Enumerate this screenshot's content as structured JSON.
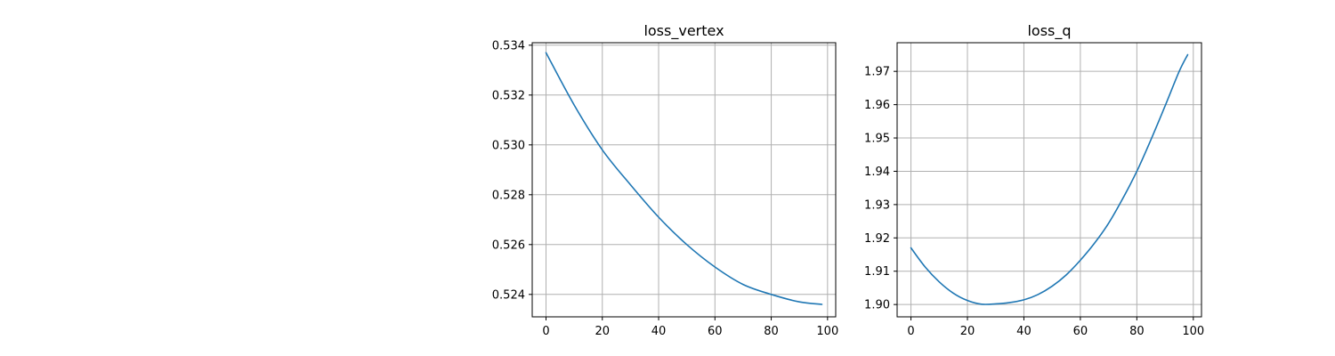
{
  "chart_data": [
    {
      "type": "line",
      "title": "loss_vertex",
      "xlabel": "",
      "ylabel": "",
      "grid": true,
      "xlim": [
        -4.9,
        102.9
      ],
      "ylim": [
        0.5231,
        0.5341
      ],
      "xticks": [
        0,
        20,
        40,
        60,
        80,
        100
      ],
      "yticks": [
        0.524,
        0.526,
        0.528,
        0.53,
        0.532,
        0.534
      ],
      "xtick_labels": [
        "0",
        "20",
        "40",
        "60",
        "80",
        "100"
      ],
      "ytick_labels": [
        "0.524",
        "0.526",
        "0.528",
        "0.530",
        "0.532",
        "0.534"
      ],
      "series": [
        {
          "color": "#1f77b4",
          "x": [
            0,
            10,
            20,
            30,
            40,
            50,
            60,
            70,
            80,
            90,
            98
          ],
          "y": [
            0.5337,
            0.5316,
            0.5298,
            0.5284,
            0.5271,
            0.526,
            0.5251,
            0.5244,
            0.524,
            0.5237,
            0.5236
          ]
        }
      ]
    },
    {
      "type": "line",
      "title": "loss_q",
      "xlabel": "",
      "ylabel": "",
      "grid": true,
      "xlim": [
        -4.9,
        102.9
      ],
      "ylim": [
        1.8963,
        1.9786
      ],
      "xticks": [
        0,
        20,
        40,
        60,
        80,
        100
      ],
      "yticks": [
        1.9,
        1.91,
        1.92,
        1.93,
        1.94,
        1.95,
        1.96,
        1.97
      ],
      "xtick_labels": [
        "0",
        "20",
        "40",
        "60",
        "80",
        "100"
      ],
      "ytick_labels": [
        "1.90",
        "1.91",
        "1.92",
        "1.93",
        "1.94",
        "1.95",
        "1.96",
        "1.97"
      ],
      "series": [
        {
          "color": "#1f77b4",
          "x": [
            0,
            5,
            10,
            15,
            20,
            25,
            30,
            35,
            40,
            45,
            50,
            55,
            60,
            65,
            70,
            75,
            80,
            85,
            90,
            95,
            98
          ],
          "y": [
            1.917,
            1.9113,
            1.9068,
            1.9034,
            1.9012,
            1.9001,
            1.9002,
            1.9006,
            1.9014,
            1.903,
            1.9055,
            1.9089,
            1.9133,
            1.9184,
            1.9244,
            1.9318,
            1.94,
            1.9495,
            1.9596,
            1.97,
            1.975
          ]
        }
      ]
    }
  ]
}
